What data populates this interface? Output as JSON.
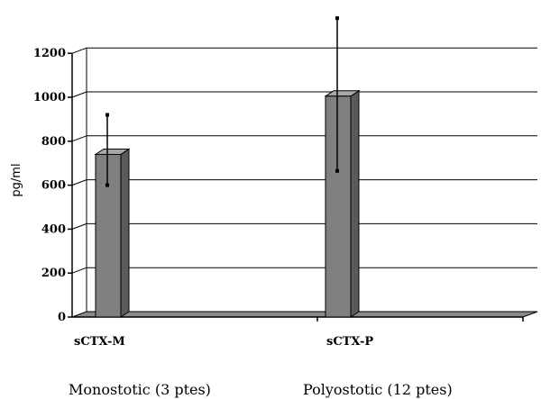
{
  "chart_data": {
    "type": "bar",
    "ylabel": "pg/ml",
    "ylim": [
      0,
      1200
    ],
    "yticks": [
      0,
      200,
      400,
      600,
      800,
      1000,
      1200
    ],
    "grid": true,
    "categories": [
      "sCTX-M",
      "sCTX-P"
    ],
    "values": [
      740,
      1005
    ],
    "error_low": [
      600,
      665
    ],
    "error_high": [
      920,
      1360
    ],
    "group_labels": [
      "Monostotic  (3 ptes)",
      "Polyostotic  (12 ptes)"
    ],
    "bar_color": "#808080"
  }
}
